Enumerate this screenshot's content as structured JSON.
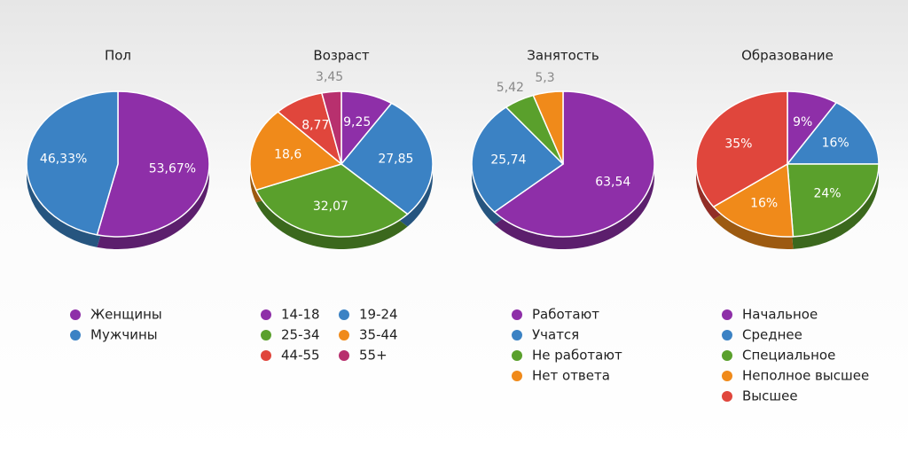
{
  "chart_data": [
    {
      "type": "pie",
      "title": "Пол",
      "categories": [
        "Женщины",
        "Мужчины"
      ],
      "values": [
        53.67,
        46.33
      ],
      "value_labels": [
        "53,67%",
        "46,33%"
      ],
      "colors": [
        "#8e2fa8",
        "#3b82c4"
      ]
    },
    {
      "type": "pie",
      "title": "Возраст",
      "categories": [
        "14-18",
        "19-24",
        "25-34",
        "35-44",
        "44-55",
        "55+"
      ],
      "values": [
        9.25,
        27.85,
        32.07,
        18.6,
        8.77,
        3.45
      ],
      "value_labels": [
        "9,25",
        "27,85",
        "32,07",
        "18,6",
        "8,77",
        "3,45"
      ],
      "colors": [
        "#8e2fa8",
        "#3b82c4",
        "#5aa02c",
        "#f08a1a",
        "#e0463c",
        "#b8306e"
      ]
    },
    {
      "type": "pie",
      "title": "Занятость",
      "categories": [
        "Работают",
        "Учатся",
        "Не работают",
        "Нет ответа"
      ],
      "values": [
        63.54,
        25.74,
        5.42,
        5.3
      ],
      "value_labels": [
        "63,54",
        "25,74",
        "5,42",
        "5,3"
      ],
      "colors": [
        "#8e2fa8",
        "#3b82c4",
        "#5aa02c",
        "#f08a1a"
      ]
    },
    {
      "type": "pie",
      "title": "Образование",
      "categories": [
        "Начальное",
        "Среднее",
        "Специальное",
        "Неполное высшее",
        "Высшее"
      ],
      "values": [
        9,
        16,
        24,
        16,
        35
      ],
      "value_labels": [
        "9%",
        "16%",
        "24%",
        "16%",
        "35%"
      ],
      "colors": [
        "#8e2fa8",
        "#3b82c4",
        "#5aa02c",
        "#f08a1a",
        "#e0463c"
      ]
    }
  ]
}
